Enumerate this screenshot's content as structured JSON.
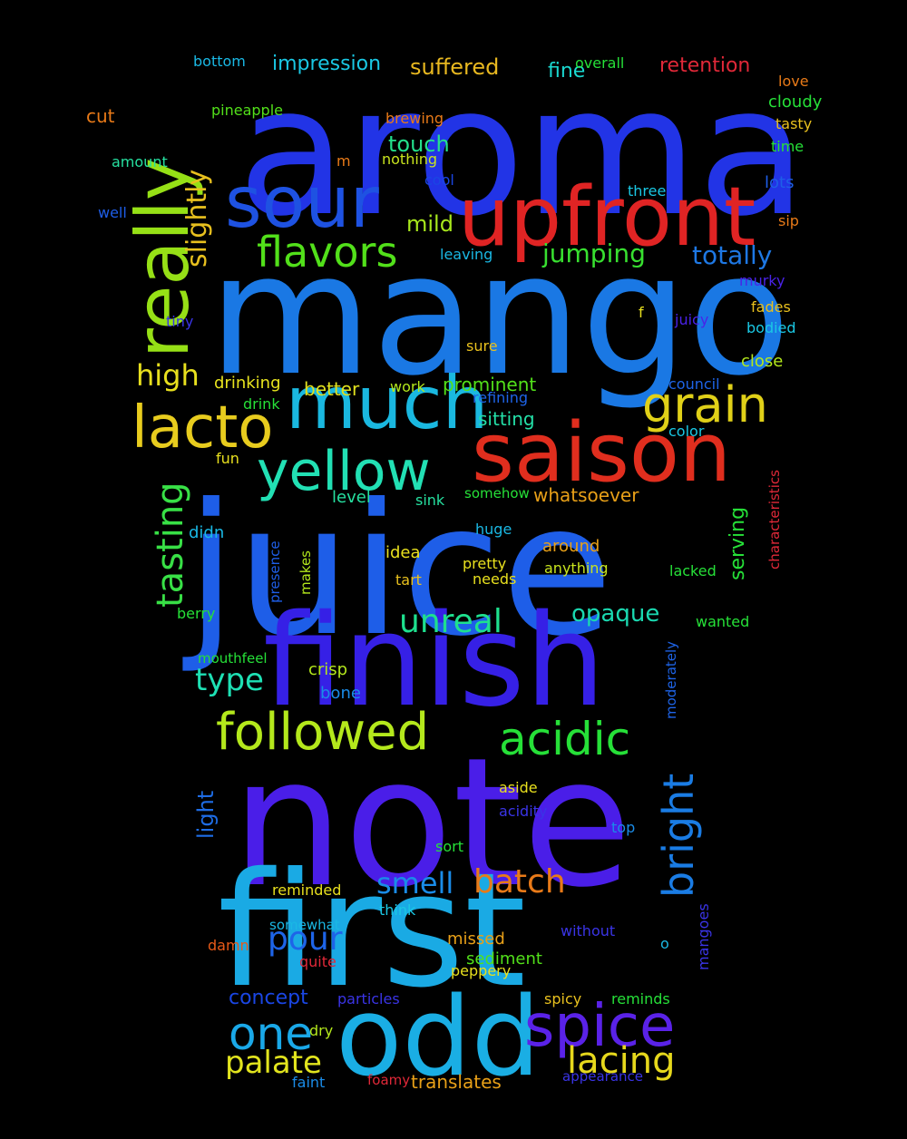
{
  "words": [
    {
      "text": "aroma",
      "color": "#2234e6",
      "size": 196,
      "rotate": false
    },
    {
      "text": "mango",
      "color": "#1a78e4",
      "size": 185,
      "rotate": false
    },
    {
      "text": "juice",
      "color": "#1e5ee8",
      "size": 200,
      "rotate": false
    },
    {
      "text": "note",
      "color": "#4a1ee8",
      "size": 196,
      "rotate": false
    },
    {
      "text": "first",
      "color": "#1aaae4",
      "size": 174,
      "rotate": false
    },
    {
      "text": "finish",
      "color": "#3620e6",
      "size": 140,
      "rotate": false
    },
    {
      "text": "odd",
      "color": "#1aaee4",
      "size": 120,
      "rotate": false
    },
    {
      "text": "upfront",
      "color": "#e02424",
      "size": 90,
      "rotate": false
    },
    {
      "text": "saison",
      "color": "#e02e1e",
      "size": 90,
      "rotate": false
    },
    {
      "text": "much",
      "color": "#1ab8e0",
      "size": 80,
      "rotate": false
    },
    {
      "text": "sour",
      "color": "#1e52e2",
      "size": 78,
      "rotate": false
    },
    {
      "text": "really",
      "color": "#96e016",
      "size": 80,
      "rotate": true
    },
    {
      "text": "lacto",
      "color": "#e8cc1e",
      "size": 64,
      "rotate": false
    },
    {
      "text": "yellow",
      "color": "#22e0b4",
      "size": 60,
      "rotate": false
    },
    {
      "text": "spice",
      "color": "#5a22e8",
      "size": 64,
      "rotate": false
    },
    {
      "text": "grain",
      "color": "#e0d018",
      "size": 54,
      "rotate": false
    },
    {
      "text": "followed",
      "color": "#b4e81c",
      "size": 56,
      "rotate": false
    },
    {
      "text": "acidic",
      "color": "#26e038",
      "size": 50,
      "rotate": false
    },
    {
      "text": "one",
      "color": "#1aa8e8",
      "size": 50,
      "rotate": false
    },
    {
      "text": "flavors",
      "color": "#52e01a",
      "size": 46,
      "rotate": false
    },
    {
      "text": "bright",
      "color": "#1a7ce4",
      "size": 46,
      "rotate": true
    },
    {
      "text": "tasting",
      "color": "#38e046",
      "size": 40,
      "rotate": true
    },
    {
      "text": "lacing",
      "color": "#e6d81c",
      "size": 40,
      "rotate": false
    },
    {
      "text": "pour",
      "color": "#1e64e8",
      "size": 36,
      "rotate": false
    },
    {
      "text": "unreal",
      "color": "#1ee08e",
      "size": 36,
      "rotate": false
    },
    {
      "text": "palate",
      "color": "#e2e41e",
      "size": 34,
      "rotate": false
    },
    {
      "text": "batch",
      "color": "#e87a18",
      "size": 36,
      "rotate": false
    },
    {
      "text": "type",
      "color": "#1ee0b4",
      "size": 34,
      "rotate": false
    },
    {
      "text": "high",
      "color": "#e8e01e",
      "size": 32,
      "rotate": false
    },
    {
      "text": "slightly",
      "color": "#e8c01e",
      "size": 30,
      "rotate": true
    },
    {
      "text": "smell",
      "color": "#1a8ce8",
      "size": 32,
      "rotate": false
    },
    {
      "text": "jumping",
      "color": "#38e030",
      "size": 28,
      "rotate": false
    },
    {
      "text": "totally",
      "color": "#1e78e4",
      "size": 28,
      "rotate": false
    },
    {
      "text": "opaque",
      "color": "#1ad8b0",
      "size": 26,
      "rotate": false
    },
    {
      "text": "mild",
      "color": "#a8e81c",
      "size": 24,
      "rotate": false
    },
    {
      "text": "touch",
      "color": "#24e08c",
      "size": 24,
      "rotate": false
    },
    {
      "text": "suffered",
      "color": "#e8b820",
      "size": 24,
      "rotate": false
    },
    {
      "text": "impression",
      "color": "#1ac8e4",
      "size": 22,
      "rotate": false
    },
    {
      "text": "retention",
      "color": "#e02838",
      "size": 22,
      "rotate": false
    },
    {
      "text": "concept",
      "color": "#1a46e4",
      "size": 22,
      "rotate": false
    },
    {
      "text": "whatsoever",
      "color": "#e8a018",
      "size": 20,
      "rotate": false
    },
    {
      "text": "prominent",
      "color": "#52e01a",
      "size": 20,
      "rotate": false
    },
    {
      "text": "sitting",
      "color": "#24e0a8",
      "size": 20,
      "rotate": false
    },
    {
      "text": "better",
      "color": "#e0e01e",
      "size": 20,
      "rotate": false
    },
    {
      "text": "fine",
      "color": "#1ad8d0",
      "size": 22,
      "rotate": false
    },
    {
      "text": "light",
      "color": "#1e6ce4",
      "size": 24,
      "rotate": true
    },
    {
      "text": "serving",
      "color": "#26e038",
      "size": 22,
      "rotate": true
    },
    {
      "text": "translates",
      "color": "#e8a018",
      "size": 20,
      "rotate": false
    },
    {
      "text": "cut",
      "color": "#e87a18",
      "size": 20,
      "rotate": false
    },
    {
      "text": "drinking",
      "color": "#e8e41e",
      "size": 18,
      "rotate": false
    },
    {
      "text": "crisp",
      "color": "#b4e81c",
      "size": 18,
      "rotate": false
    },
    {
      "text": "level",
      "color": "#26e0a0",
      "size": 18,
      "rotate": false
    },
    {
      "text": "didn",
      "color": "#1ab8e4",
      "size": 18,
      "rotate": false
    },
    {
      "text": "idea",
      "color": "#e8e01e",
      "size": 18,
      "rotate": false
    },
    {
      "text": "around",
      "color": "#e8a018",
      "size": 18,
      "rotate": false
    },
    {
      "text": "anything",
      "color": "#c8e41e",
      "size": 16,
      "rotate": false
    },
    {
      "text": "missed",
      "color": "#e8a018",
      "size": 18,
      "rotate": false
    },
    {
      "text": "sediment",
      "color": "#52e01a",
      "size": 18,
      "rotate": false
    },
    {
      "text": "lacked",
      "color": "#26e038",
      "size": 16,
      "rotate": false
    },
    {
      "text": "bone",
      "color": "#1a8ce8",
      "size": 18,
      "rotate": false
    },
    {
      "text": "cloudy",
      "color": "#26e038",
      "size": 18,
      "rotate": false
    },
    {
      "text": "overall",
      "color": "#26e038",
      "size": 16,
      "rotate": false
    },
    {
      "text": "bottom",
      "color": "#1ab8e4",
      "size": 16,
      "rotate": false
    },
    {
      "text": "brewing",
      "color": "#e87a18",
      "size": 16,
      "rotate": false
    },
    {
      "text": "close",
      "color": "#b4e81c",
      "size": 18,
      "rotate": false
    },
    {
      "text": "lots",
      "color": "#1e5ee8",
      "size": 18,
      "rotate": false
    },
    {
      "text": "murky",
      "color": "#4a22e8",
      "size": 16,
      "rotate": false
    },
    {
      "text": "fades",
      "color": "#e8c01e",
      "size": 16,
      "rotate": false
    },
    {
      "text": "bodied",
      "color": "#1ac8e4",
      "size": 16,
      "rotate": false
    },
    {
      "text": "cool",
      "color": "#1a46e4",
      "size": 16,
      "rotate": false
    },
    {
      "text": "love",
      "color": "#e87a18",
      "size": 16,
      "rotate": false
    },
    {
      "text": "tasty",
      "color": "#e8c01e",
      "size": 16,
      "rotate": false
    },
    {
      "text": "time",
      "color": "#26e038",
      "size": 16,
      "rotate": false
    },
    {
      "text": "pineapple",
      "color": "#52e01a",
      "size": 16,
      "rotate": false
    },
    {
      "text": "amount",
      "color": "#26e0a0",
      "size": 16,
      "rotate": false
    },
    {
      "text": "m",
      "color": "#e87a18",
      "size": 16,
      "rotate": false
    },
    {
      "text": "nothing",
      "color": "#c8e41e",
      "size": 16,
      "rotate": false
    },
    {
      "text": "leaving",
      "color": "#1ab8e4",
      "size": 16,
      "rotate": false
    },
    {
      "text": "well",
      "color": "#1e5ee8",
      "size": 16,
      "rotate": false
    },
    {
      "text": "three",
      "color": "#1ac8e4",
      "size": 16,
      "rotate": false
    },
    {
      "text": "sip",
      "color": "#e87a18",
      "size": 16,
      "rotate": false
    },
    {
      "text": "tiny",
      "color": "#3a34e6",
      "size": 16,
      "rotate": false
    },
    {
      "text": "f",
      "color": "#e8e01e",
      "size": 16,
      "rotate": false
    },
    {
      "text": "juicy",
      "color": "#4a22e8",
      "size": 16,
      "rotate": false
    },
    {
      "text": "sure",
      "color": "#e8c01e",
      "size": 16,
      "rotate": false
    },
    {
      "text": "work",
      "color": "#b4e81c",
      "size": 16,
      "rotate": false
    },
    {
      "text": "refining",
      "color": "#1e64e8",
      "size": 16,
      "rotate": false
    },
    {
      "text": "council",
      "color": "#1e64e8",
      "size": 16,
      "rotate": false
    },
    {
      "text": "drink",
      "color": "#26e038",
      "size": 16,
      "rotate": false
    },
    {
      "text": "color",
      "color": "#1ac8e4",
      "size": 16,
      "rotate": false
    },
    {
      "text": "fun",
      "color": "#e8e01e",
      "size": 16,
      "rotate": false
    },
    {
      "text": "sink",
      "color": "#26e0a0",
      "size": 16,
      "rotate": false
    },
    {
      "text": "somehow",
      "color": "#26e038",
      "size": 15,
      "rotate": false
    },
    {
      "text": "characteristics",
      "color": "#e02838",
      "size": 15,
      "rotate": true
    },
    {
      "text": "presence",
      "color": "#1e5ee8",
      "size": 15,
      "rotate": true
    },
    {
      "text": "makes",
      "color": "#b4e81c",
      "size": 15,
      "rotate": true
    },
    {
      "text": "huge",
      "color": "#1ab8e4",
      "size": 16,
      "rotate": false
    },
    {
      "text": "pretty",
      "color": "#e8e01e",
      "size": 16,
      "rotate": false
    },
    {
      "text": "tart",
      "color": "#e8c01e",
      "size": 16,
      "rotate": false
    },
    {
      "text": "needs",
      "color": "#e8e01e",
      "size": 16,
      "rotate": false
    },
    {
      "text": "berry",
      "color": "#26e038",
      "size": 16,
      "rotate": false
    },
    {
      "text": "wanted",
      "color": "#26e038",
      "size": 16,
      "rotate": false
    },
    {
      "text": "mouthfeel",
      "color": "#26e038",
      "size": 15,
      "rotate": false
    },
    {
      "text": "moderately",
      "color": "#1e64e8",
      "size": 15,
      "rotate": true
    },
    {
      "text": "aside",
      "color": "#e8e01e",
      "size": 16,
      "rotate": false
    },
    {
      "text": "acidity",
      "color": "#3a34e6",
      "size": 16,
      "rotate": false
    },
    {
      "text": "top",
      "color": "#1a8ce8",
      "size": 16,
      "rotate": false
    },
    {
      "text": "sort",
      "color": "#26e038",
      "size": 16,
      "rotate": false
    },
    {
      "text": "reminded",
      "color": "#e8e01e",
      "size": 16,
      "rotate": false
    },
    {
      "text": "think",
      "color": "#1ac8e4",
      "size": 16,
      "rotate": false
    },
    {
      "text": "mangoes",
      "color": "#3a34e6",
      "size": 16,
      "rotate": true
    },
    {
      "text": "somewhat",
      "color": "#1ab8e4",
      "size": 15,
      "rotate": false
    },
    {
      "text": "without",
      "color": "#3a34e6",
      "size": 16,
      "rotate": false
    },
    {
      "text": "damn",
      "color": "#e85a18",
      "size": 16,
      "rotate": false
    },
    {
      "text": "o",
      "color": "#1ab8e4",
      "size": 16,
      "rotate": false
    },
    {
      "text": "quite",
      "color": "#e02838",
      "size": 16,
      "rotate": false
    },
    {
      "text": "peppery",
      "color": "#e8e01e",
      "size": 16,
      "rotate": false
    },
    {
      "text": "particles",
      "color": "#3a34e6",
      "size": 16,
      "rotate": false
    },
    {
      "text": "spicy",
      "color": "#e8c01e",
      "size": 16,
      "rotate": false
    },
    {
      "text": "reminds",
      "color": "#26e038",
      "size": 16,
      "rotate": false
    },
    {
      "text": "dry",
      "color": "#b4e81c",
      "size": 16,
      "rotate": false
    },
    {
      "text": "faint",
      "color": "#1a8ce8",
      "size": 16,
      "rotate": false
    },
    {
      "text": "foamy",
      "color": "#e02838",
      "size": 15,
      "rotate": false
    },
    {
      "text": "appearance",
      "color": "#3a34e6",
      "size": 15,
      "rotate": false
    }
  ]
}
